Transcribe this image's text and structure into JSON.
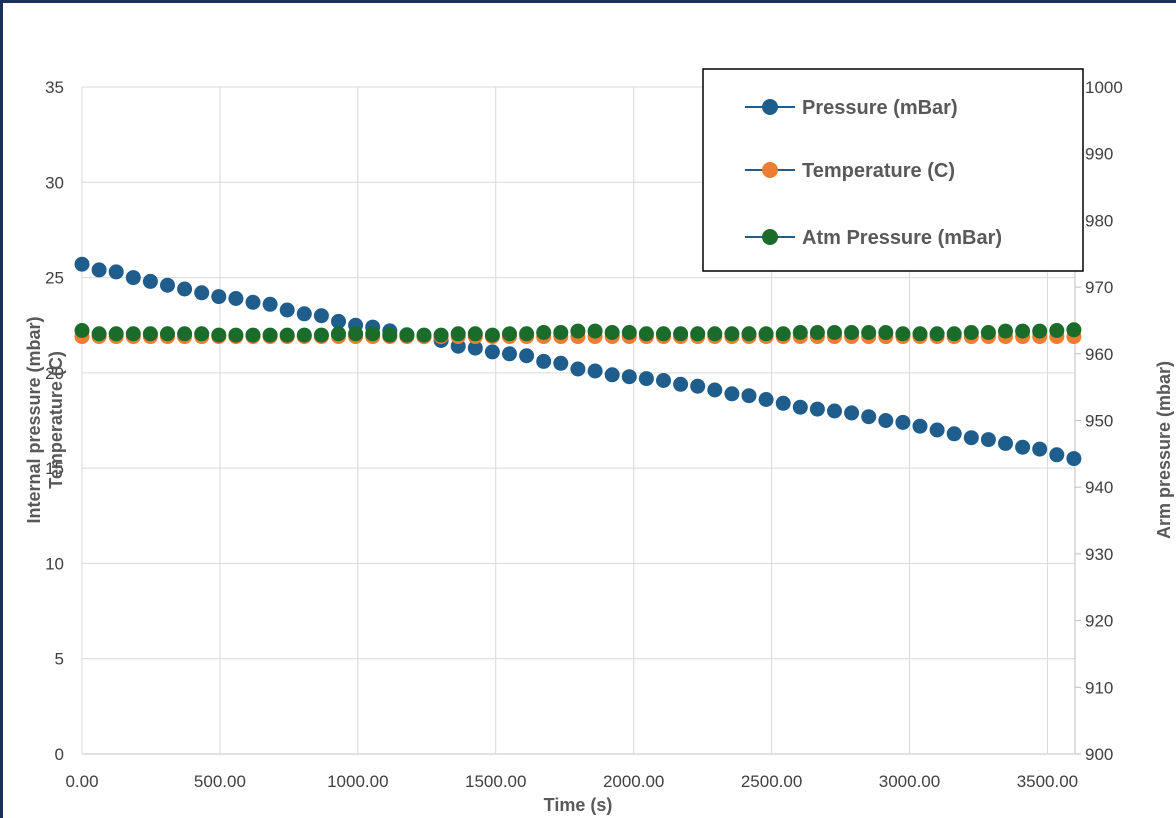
{
  "chart_data": {
    "type": "scatter",
    "xlabel": "Time (s)",
    "ylabel_left": [
      "Internal pressure (mbar)",
      "Temperature (C)"
    ],
    "ylabel_right": "Arm pressure (mbar)",
    "xlim": [
      0,
      3600
    ],
    "ylim_left": [
      0,
      35
    ],
    "ylim_right": [
      900,
      1000
    ],
    "x_ticks": [
      "0.00",
      "500.00",
      "1000.00",
      "1500.00",
      "2000.00",
      "2500.00",
      "3000.00",
      "3500.00"
    ],
    "y_left_ticks": [
      "0",
      "5",
      "10",
      "15",
      "20",
      "25",
      "30",
      "35"
    ],
    "y_right_ticks": [
      "900",
      "910",
      "920",
      "930",
      "940",
      "950",
      "960",
      "970",
      "980",
      "990",
      "1000"
    ],
    "grid": true,
    "legend_position": "top-right",
    "x": [
      0,
      62,
      124,
      186,
      248,
      310,
      372,
      434,
      496,
      558,
      620,
      682,
      744,
      806,
      868,
      930,
      992,
      1054,
      1116,
      1178,
      1240,
      1302,
      1364,
      1426,
      1488,
      1550,
      1612,
      1674,
      1736,
      1798,
      1860,
      1922,
      1984,
      2046,
      2108,
      2170,
      2232,
      2294,
      2356,
      2418,
      2480,
      2542,
      2604,
      2666,
      2728,
      2790,
      2852,
      2914,
      2976,
      3038,
      3100,
      3162,
      3224,
      3286,
      3348,
      3410,
      3472,
      3534,
      3596
    ],
    "series": [
      {
        "name": "Pressure (mBar)",
        "axis": "left",
        "color": "#1f5e8c",
        "values": [
          25.7,
          25.4,
          25.3,
          25.0,
          24.8,
          24.6,
          24.4,
          24.2,
          24.0,
          23.9,
          23.7,
          23.6,
          23.3,
          23.1,
          23.0,
          22.7,
          22.5,
          22.4,
          22.2,
          22.0,
          21.9,
          21.7,
          21.4,
          21.3,
          21.1,
          21.0,
          20.9,
          20.6,
          20.5,
          20.2,
          20.1,
          19.9,
          19.8,
          19.7,
          19.6,
          19.4,
          19.3,
          19.1,
          18.9,
          18.8,
          18.6,
          18.4,
          18.2,
          18.1,
          18.0,
          17.9,
          17.7,
          17.5,
          17.4,
          17.2,
          17.0,
          16.8,
          16.6,
          16.5,
          16.3,
          16.1,
          16.0,
          15.7,
          15.5
        ]
      },
      {
        "name": "Temperature (C)",
        "axis": "left",
        "color": "#ed7d31",
        "values": [
          21.9,
          21.9,
          21.9,
          21.9,
          21.9,
          21.9,
          21.9,
          21.9,
          21.9,
          21.9,
          21.9,
          21.9,
          21.9,
          21.9,
          21.9,
          21.9,
          21.9,
          21.9,
          21.9,
          21.9,
          21.9,
          21.9,
          21.9,
          21.9,
          21.9,
          21.9,
          21.9,
          21.9,
          21.9,
          21.9,
          21.9,
          21.9,
          21.9,
          21.9,
          21.9,
          21.9,
          21.9,
          21.9,
          21.9,
          21.9,
          21.9,
          21.9,
          21.9,
          21.9,
          21.9,
          21.9,
          21.9,
          21.9,
          21.9,
          21.9,
          21.9,
          21.9,
          21.9,
          21.9,
          21.9,
          21.9,
          21.9,
          21.9,
          21.9
        ]
      },
      {
        "name": "Atm Pressure (mBar)",
        "axis": "right",
        "color": "#1b6b2a",
        "values": [
          963.5,
          963.0,
          963.0,
          963.0,
          963.0,
          963.0,
          963.0,
          963.0,
          962.8,
          962.8,
          962.8,
          962.8,
          962.8,
          962.8,
          962.8,
          963.0,
          963.0,
          963.0,
          962.8,
          962.8,
          962.8,
          962.8,
          963.0,
          963.0,
          962.8,
          963.0,
          963.0,
          963.2,
          963.2,
          963.4,
          963.4,
          963.2,
          963.2,
          963.0,
          963.0,
          963.0,
          963.0,
          963.0,
          963.0,
          963.0,
          963.0,
          963.0,
          963.2,
          963.2,
          963.2,
          963.2,
          963.2,
          963.2,
          963.0,
          963.0,
          963.0,
          963.0,
          963.2,
          963.2,
          963.4,
          963.4,
          963.4,
          963.5,
          963.6
        ]
      }
    ]
  }
}
